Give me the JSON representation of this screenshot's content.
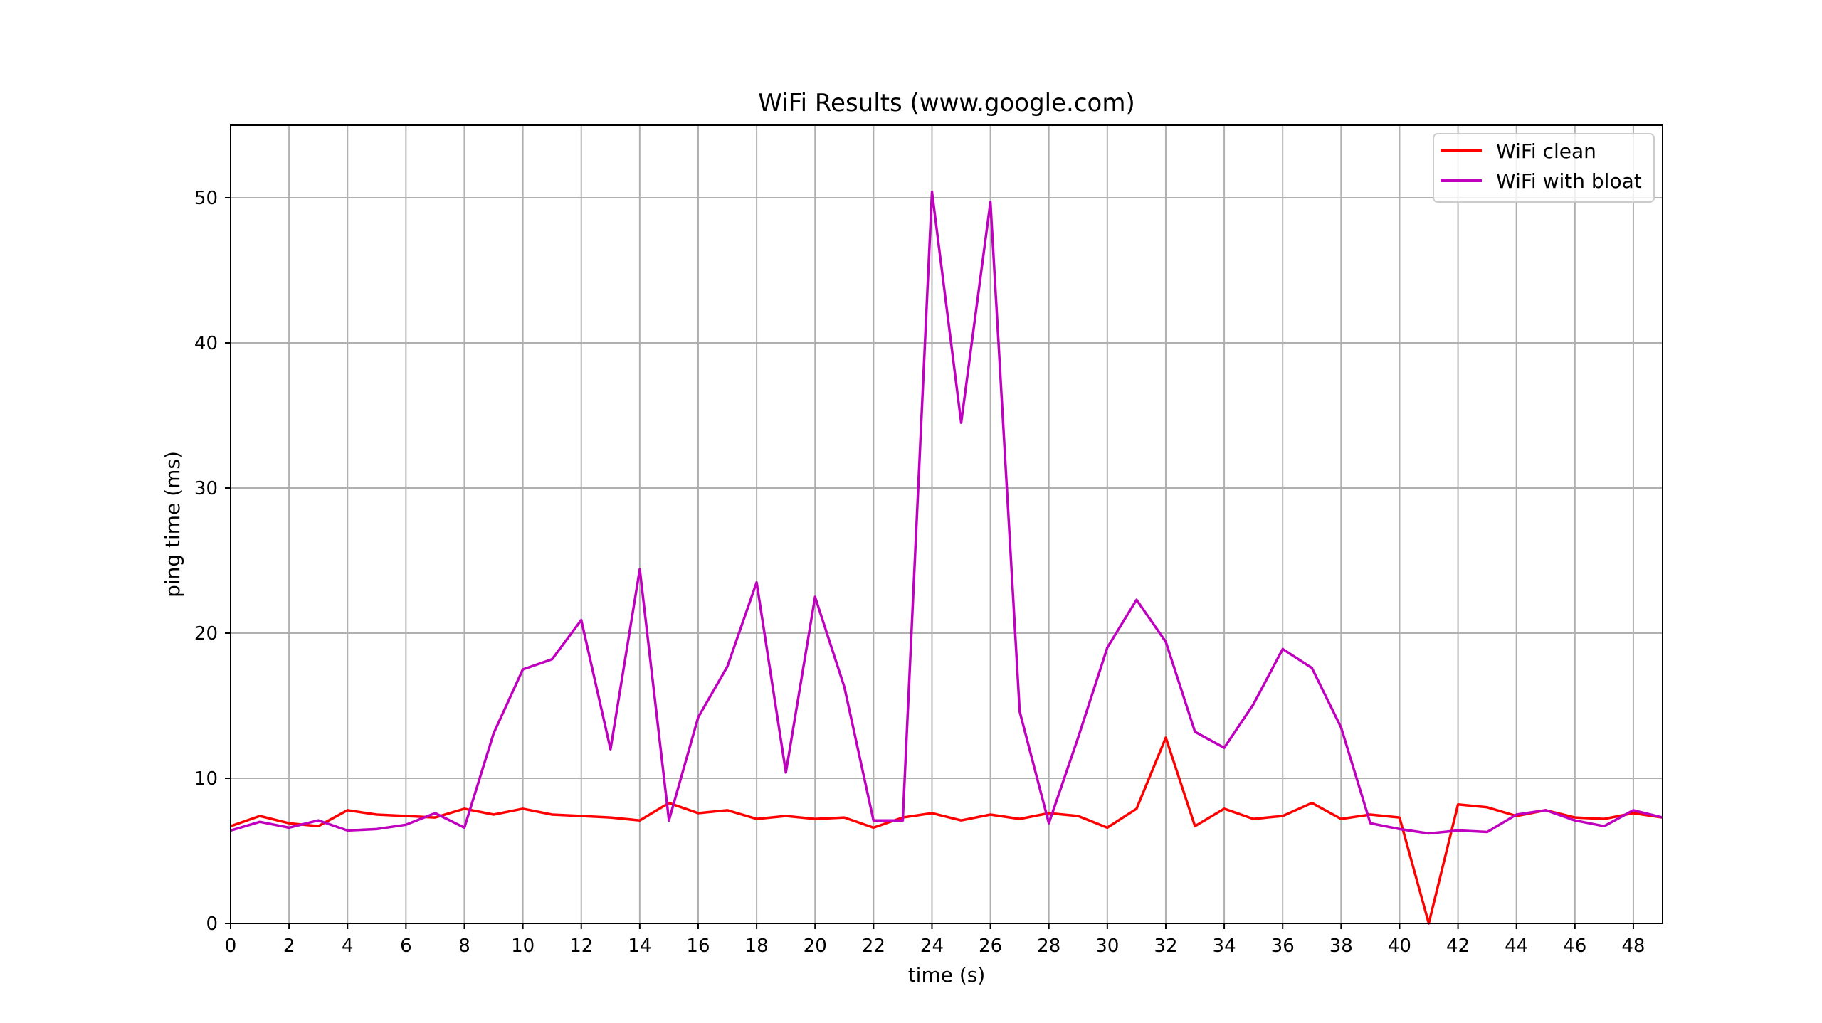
{
  "chart_data": {
    "type": "line",
    "title": "WiFi Results (www.google.com)",
    "xlabel": "time (s)",
    "ylabel": "ping time (ms)",
    "xlim": [
      0,
      49
    ],
    "ylim": [
      0,
      55
    ],
    "xticks": [
      0,
      2,
      4,
      6,
      8,
      10,
      12,
      14,
      16,
      18,
      20,
      22,
      24,
      26,
      28,
      30,
      32,
      34,
      36,
      38,
      40,
      42,
      44,
      46,
      48
    ],
    "yticks": [
      0,
      10,
      20,
      30,
      40,
      50
    ],
    "grid": true,
    "legend_position": "top-right",
    "x": [
      0,
      1,
      2,
      3,
      4,
      5,
      6,
      7,
      8,
      9,
      10,
      11,
      12,
      13,
      14,
      15,
      16,
      17,
      18,
      19,
      20,
      21,
      22,
      23,
      24,
      25,
      26,
      27,
      28,
      29,
      30,
      31,
      32,
      33,
      34,
      35,
      36,
      37,
      38,
      39,
      40,
      41,
      42,
      43,
      44,
      45,
      46,
      47,
      48,
      49
    ],
    "series": [
      {
        "name": "WiFi clean",
        "color": "#ff0000",
        "values": [
          6.7,
          7.4,
          6.9,
          6.7,
          7.8,
          7.5,
          7.4,
          7.3,
          7.9,
          7.5,
          7.9,
          7.5,
          7.4,
          7.3,
          7.1,
          8.3,
          7.6,
          7.8,
          7.2,
          7.4,
          7.2,
          7.3,
          6.6,
          7.3,
          7.6,
          7.1,
          7.5,
          7.2,
          7.6,
          7.4,
          6.6,
          7.9,
          12.8,
          6.7,
          7.9,
          7.2,
          7.4,
          8.3,
          7.2,
          7.5,
          7.3,
          0.0,
          8.2,
          8.0,
          7.4,
          7.8,
          7.3,
          7.2,
          7.6,
          7.3
        ]
      },
      {
        "name": "WiFi with bloat",
        "color": "#bf00bf",
        "values": [
          6.4,
          7.0,
          6.6,
          7.1,
          6.4,
          6.5,
          6.8,
          7.6,
          6.6,
          13.1,
          17.5,
          18.2,
          20.9,
          12.0,
          24.4,
          7.1,
          14.2,
          17.7,
          23.5,
          10.4,
          22.5,
          16.3,
          7.1,
          7.1,
          50.4,
          34.5,
          49.7,
          14.6,
          6.9,
          12.8,
          19.0,
          22.3,
          19.4,
          13.2,
          12.1,
          15.1,
          18.9,
          17.6,
          13.5,
          6.9,
          6.5,
          6.2,
          6.4,
          6.3,
          7.5,
          7.8,
          7.1,
          6.7,
          7.8,
          7.3
        ]
      }
    ]
  }
}
